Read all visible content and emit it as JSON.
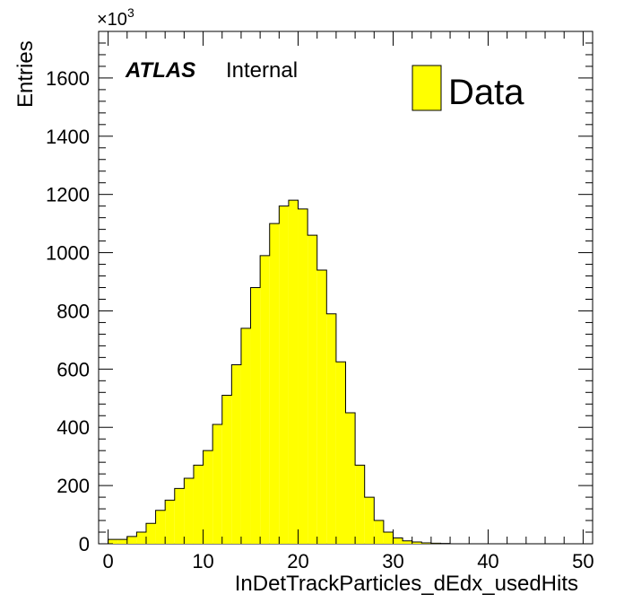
{
  "chart_data": {
    "type": "bar",
    "histogram": true,
    "xlabel": "InDetTrackParticles_dEdx_usedHits",
    "ylabel": "Entries",
    "y_multiplier_base": "×10",
    "y_multiplier_exp": "3",
    "xlim": [
      -1,
      51
    ],
    "ylim": [
      0,
      1760
    ],
    "xticks": [
      0,
      10,
      20,
      30,
      40,
      50
    ],
    "yticks": [
      0,
      200,
      400,
      600,
      800,
      1000,
      1200,
      1400,
      1600
    ],
    "bin_width": 1,
    "bin_edges_start": 0,
    "values": [
      15,
      15,
      25,
      40,
      70,
      115,
      150,
      190,
      225,
      270,
      320,
      410,
      510,
      615,
      740,
      880,
      990,
      1100,
      1160,
      1180,
      1150,
      1060,
      940,
      790,
      625,
      450,
      270,
      160,
      80,
      40,
      20,
      10,
      6,
      3,
      2,
      1
    ],
    "series": [
      {
        "name": "Data",
        "color": "#ffff00"
      }
    ],
    "fill_color": "#ffff00",
    "edge_color": "#000000",
    "legend_position": "top-right",
    "annotation": {
      "atlas": "ATLAS",
      "status": "Internal"
    },
    "grid": false
  }
}
